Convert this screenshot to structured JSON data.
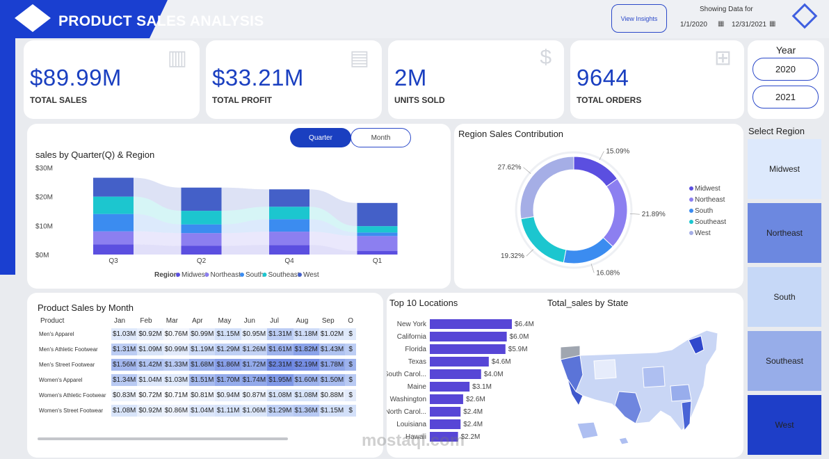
{
  "header": {
    "title": "PRODUCT SALES ANALYSIS",
    "view_insights": "View Insights",
    "showing_label": "Showing Data for",
    "date_from": "1/1/2020",
    "date_to": "12/31/2021"
  },
  "kpis": [
    {
      "value": "$89.99M",
      "label": "TOTAL SALES",
      "icon": "bar-chart-icon"
    },
    {
      "value": "$33.21M",
      "label": "TOTAL PROFIT",
      "icon": "cash-icon"
    },
    {
      "value": "2M",
      "label": "UNITS SOLD",
      "icon": "dollar-icon"
    },
    {
      "value": "9644",
      "label": "TOTAL ORDERS",
      "icon": "cart-icon"
    }
  ],
  "year_slicer": {
    "title": "Year",
    "options": [
      "2020",
      "2021"
    ]
  },
  "region_slicer": {
    "title": "Select Region",
    "options": [
      {
        "label": "Midwest",
        "color": "#dde9fc"
      },
      {
        "label": "Northeast",
        "color": "#6c88e0"
      },
      {
        "label": "South",
        "color": "#c6d8f7"
      },
      {
        "label": "Southeast",
        "color": "#97ade9"
      },
      {
        "label": "West",
        "color": "#1e3ec8"
      }
    ]
  },
  "ribbon": {
    "title": "sales by Quarter(Q) & Region",
    "toggle": {
      "active": "Quarter",
      "inactive": "Month"
    },
    "legend_title": "Region",
    "chart_data": {
      "type": "bar",
      "stacked": true,
      "categories": [
        "Q3",
        "Q2",
        "Q4",
        "Q1"
      ],
      "yticks": [
        "$30M",
        "$20M",
        "$10M",
        "$0M"
      ],
      "ylim": [
        0,
        30
      ],
      "series": [
        {
          "name": "Midwest",
          "color": "#5b4fe0",
          "values": [
            3.5,
            3.0,
            3.3,
            1.2
          ]
        },
        {
          "name": "Northeast",
          "color": "#8c7ff0",
          "values": [
            4.5,
            4.4,
            4.6,
            5.2
          ]
        },
        {
          "name": "South",
          "color": "#3b8cf0",
          "values": [
            6.0,
            3.0,
            4.3,
            1.2
          ]
        },
        {
          "name": "Southeast",
          "color": "#1cc6cf",
          "values": [
            6.0,
            4.7,
            4.3,
            2.2
          ]
        },
        {
          "name": "West",
          "color": "#4460c8",
          "values": [
            6.5,
            8.0,
            6.0,
            8.0
          ]
        }
      ],
      "legend_position": "bottom",
      "grid": false
    }
  },
  "donut": {
    "title": "Region Sales Contribution",
    "chart_data": {
      "type": "pie",
      "donut": true,
      "slices": [
        {
          "name": "Midwest",
          "value": 15.09,
          "label": "15.09%",
          "color": "#5b4fe0"
        },
        {
          "name": "Northeast",
          "value": 21.89,
          "label": "21.89%",
          "color": "#8c7ff0"
        },
        {
          "name": "South",
          "value": 16.08,
          "label": "16.08%",
          "color": "#3b8cf0"
        },
        {
          "name": "Southeast",
          "value": 19.32,
          "label": "19.32%",
          "color": "#1cc6cf"
        },
        {
          "name": "West",
          "value": 27.62,
          "label": "27.62%",
          "color": "#a5aee6"
        }
      ],
      "legend_position": "right"
    }
  },
  "matrix": {
    "title": "Product Sales by Month",
    "columns": [
      "Product",
      "Jan",
      "Feb",
      "Mar",
      "Apr",
      "May",
      "Jun",
      "Jul",
      "Aug",
      "Sep",
      "O"
    ],
    "rows": [
      {
        "product": "Men's Apparel",
        "cells": [
          {
            "v": "$1.03M",
            "c": "#dfe9fb"
          },
          {
            "v": "$0.92M",
            "c": "#e9f0fc"
          },
          {
            "v": "$0.76M",
            "c": "#f3f6fd"
          },
          {
            "v": "$0.99M",
            "c": "#e3ebfb"
          },
          {
            "v": "$1.15M",
            "c": "#d3e0f9"
          },
          {
            "v": "$0.95M",
            "c": "#e6eefc"
          },
          {
            "v": "$1.31M",
            "c": "#bccdf4"
          },
          {
            "v": "$1.18M",
            "c": "#cfdcf8"
          },
          {
            "v": "$1.02M",
            "c": "#dfe9fb"
          },
          {
            "v": "$",
            "c": "#dfe9fb"
          }
        ]
      },
      {
        "product": "Men's Athletic Footwear",
        "cells": [
          {
            "v": "$1.31M",
            "c": "#bccdf4"
          },
          {
            "v": "$1.09M",
            "c": "#d8e4f9"
          },
          {
            "v": "$0.99M",
            "c": "#e3ebfb"
          },
          {
            "v": "$1.19M",
            "c": "#cddbf8"
          },
          {
            "v": "$1.29M",
            "c": "#bfd0f5"
          },
          {
            "v": "$1.26M",
            "c": "#c3d2f5"
          },
          {
            "v": "$1.61M",
            "c": "#9db2ed"
          },
          {
            "v": "$1.82M",
            "c": "#8ba3ea"
          },
          {
            "v": "$1.43M",
            "c": "#b0c3f1"
          },
          {
            "v": "$",
            "c": "#bccdf4"
          }
        ]
      },
      {
        "product": "Men's Street Footwear",
        "cells": [
          {
            "v": "$1.56M",
            "c": "#a3b7ee"
          },
          {
            "v": "$1.42M",
            "c": "#b1c4f2"
          },
          {
            "v": "$1.33M",
            "c": "#bacbf4"
          },
          {
            "v": "$1.68M",
            "c": "#97aeec"
          },
          {
            "v": "$1.86M",
            "c": "#889fe9"
          },
          {
            "v": "$1.72M",
            "c": "#93aaeb"
          },
          {
            "v": "$2.31M",
            "c": "#6e88e3"
          },
          {
            "v": "$2.19M",
            "c": "#758de4"
          },
          {
            "v": "$1.78M",
            "c": "#8fa6ea"
          },
          {
            "v": "$",
            "c": "#9db2ed"
          }
        ]
      },
      {
        "product": "Women's Apparel",
        "cells": [
          {
            "v": "$1.34M",
            "c": "#b9caf3"
          },
          {
            "v": "$1.04M",
            "c": "#dde7fb"
          },
          {
            "v": "$1.03M",
            "c": "#dfe9fb"
          },
          {
            "v": "$1.51M",
            "c": "#a7bbef"
          },
          {
            "v": "$1.70M",
            "c": "#95acec"
          },
          {
            "v": "$1.74M",
            "c": "#92a9eb"
          },
          {
            "v": "$1.95M",
            "c": "#8099e7"
          },
          {
            "v": "$1.60M",
            "c": "#9eb3ed"
          },
          {
            "v": "$1.50M",
            "c": "#a8bcf0"
          },
          {
            "v": "$",
            "c": "#b9caf3"
          }
        ]
      },
      {
        "product": "Women's Athletic Footwear",
        "cells": [
          {
            "v": "$0.83M",
            "c": "#eff4fd"
          },
          {
            "v": "$0.72M",
            "c": "#f6f8fe"
          },
          {
            "v": "$0.71M",
            "c": "#f7f9fe"
          },
          {
            "v": "$0.81M",
            "c": "#f0f4fd"
          },
          {
            "v": "$0.94M",
            "c": "#e7eefc"
          },
          {
            "v": "$0.87M",
            "c": "#ecf2fd"
          },
          {
            "v": "$1.08M",
            "c": "#d9e5fa"
          },
          {
            "v": "$1.08M",
            "c": "#d9e5fa"
          },
          {
            "v": "$0.88M",
            "c": "#ebf1fd"
          },
          {
            "v": "$",
            "c": "#e3ebfb"
          }
        ]
      },
      {
        "product": "Women's Street Footwear",
        "cells": [
          {
            "v": "$1.08M",
            "c": "#d9e5fa"
          },
          {
            "v": "$0.92M",
            "c": "#e9f0fc"
          },
          {
            "v": "$0.86M",
            "c": "#edf2fd"
          },
          {
            "v": "$1.04M",
            "c": "#dde7fb"
          },
          {
            "v": "$1.11M",
            "c": "#d6e2f9"
          },
          {
            "v": "$1.06M",
            "c": "#dbe6fa"
          },
          {
            "v": "$1.29M",
            "c": "#bfd0f5"
          },
          {
            "v": "$1.36M",
            "c": "#b7c9f3"
          },
          {
            "v": "$1.15M",
            "c": "#d3e0f9"
          },
          {
            "v": "$",
            "c": "#d3e0f9"
          }
        ]
      }
    ]
  },
  "top10": {
    "title": "Top 10 Locations",
    "chart_data": {
      "type": "bar",
      "orientation": "horizontal",
      "categories": [
        "New York",
        "California",
        "Florida",
        "Texas",
        "South Carol...",
        "Maine",
        "Washington",
        "North Carol...",
        "Louisiana",
        "Hawaii"
      ],
      "values": [
        6.4,
        6.0,
        5.9,
        4.6,
        4.0,
        3.1,
        2.6,
        2.4,
        2.4,
        2.2
      ],
      "labels": [
        "$6.4M",
        "$6.0M",
        "$5.9M",
        "$4.6M",
        "$4.0M",
        "$3.1M",
        "$2.6M",
        "$2.4M",
        "$2.4M",
        "$2.2M"
      ],
      "color": "#5746d6"
    }
  },
  "map": {
    "title": "Total_sales by State"
  },
  "watermark": "mostaql.com"
}
